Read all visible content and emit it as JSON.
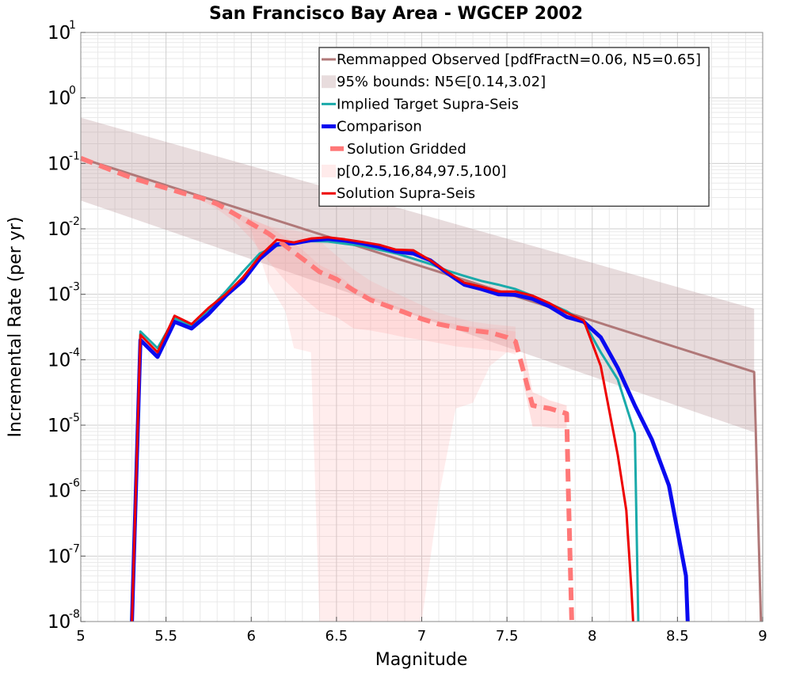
{
  "chart_data": {
    "type": "line",
    "title": "San Francisco Bay Area - WGCEP 2002",
    "xlabel": "Magnitude",
    "ylabel": "Incremental Rate (per yr)",
    "xlim": [
      5,
      9
    ],
    "ylim": [
      1e-08,
      10
    ],
    "yscale": "log",
    "grid": true,
    "legend_position": "top-right",
    "xticks": [
      "5",
      "5.5",
      "6",
      "6.5",
      "7",
      "7.5",
      "8",
      "8.5",
      "9"
    ],
    "yticks": [
      {
        "base": "10",
        "exp": "-8"
      },
      {
        "base": "10",
        "exp": "-7"
      },
      {
        "base": "10",
        "exp": "-6"
      },
      {
        "base": "10",
        "exp": "-5"
      },
      {
        "base": "10",
        "exp": "-4"
      },
      {
        "base": "10",
        "exp": "-3"
      },
      {
        "base": "10",
        "exp": "-2"
      },
      {
        "base": "10",
        "exp": "-1"
      },
      {
        "base": "10",
        "exp": "0"
      },
      {
        "base": "10",
        "exp": "1"
      }
    ],
    "bands": [
      {
        "name": "95% bounds: N5∈[0.14,3.02]",
        "color": "#b48a8e",
        "opacity": 0.3,
        "x": [
          5.0,
          8.95
        ],
        "upper": [
          0.5,
          0.0006
        ],
        "lower": [
          0.027,
          7.8e-06
        ]
      },
      {
        "name": "p[0,2.5,16,84,97.5,100]",
        "color": "#ff9a9a",
        "layers": [
          {
            "opacity": 0.18,
            "x": [
              5.0,
              5.1,
              5.2,
              5.3,
              5.4,
              5.5,
              5.6,
              5.7,
              5.8,
              5.9,
              6.0,
              6.1,
              6.2,
              6.25,
              6.35,
              6.4,
              6.5,
              6.6,
              6.7,
              6.8,
              6.9,
              7.0,
              7.1,
              7.2,
              7.3,
              7.4,
              7.5,
              7.55
            ],
            "upper": [
              0.122,
              0.095,
              0.075,
              0.06,
              0.05,
              0.042,
              0.035,
              0.03,
              0.024,
              0.018,
              0.014,
              0.011,
              0.0098,
              0.0095,
              0.0082,
              0.0065,
              0.0039,
              0.0024,
              0.0016,
              0.0012,
              0.0009,
              0.00068,
              0.00052,
              0.00044,
              0.00038,
              0.00035,
              0.00033,
              0.00032
            ],
            "lower": [
              0.122,
              0.095,
              0.075,
              0.06,
              0.05,
              0.042,
              0.035,
              0.03,
              0.022,
              0.017,
              0.0095,
              0.0015,
              0.00055,
              0.00015,
              0.00013,
              1e-08,
              1e-08,
              1e-08,
              1e-08,
              1e-08,
              1e-08,
              1e-08,
              8e-07,
              1.8e-05,
              2.2e-05,
              8e-05,
              0.00013,
              0.00013
            ]
          },
          {
            "opacity": 0.22,
            "x": [
              5.0,
              5.2,
              5.4,
              5.6,
              5.7,
              5.8,
              5.9,
              6.0,
              6.1,
              6.2,
              6.3,
              6.4,
              6.5,
              6.6,
              6.7,
              6.8,
              6.9,
              7.0,
              7.1,
              7.2,
              7.3,
              7.4,
              7.5,
              7.55
            ],
            "upper": [
              0.122,
              0.075,
              0.05,
              0.035,
              0.03,
              0.024,
              0.018,
              0.014,
              0.011,
              0.0075,
              0.0048,
              0.0028,
              0.0021,
              0.0013,
              0.00095,
              0.00075,
              0.00058,
              0.00047,
              0.0004,
              0.00035,
              0.00032,
              0.0003,
              0.00028,
              0.00027
            ],
            "lower": [
              0.122,
              0.075,
              0.05,
              0.035,
              0.028,
              0.02,
              0.013,
              0.007,
              0.0032,
              0.0016,
              0.0009,
              0.00055,
              0.00045,
              0.0003,
              0.00028,
              0.00025,
              0.00022,
              0.0002,
              0.00018,
              0.00016,
              0.00015,
              0.00014,
              0.00013,
              0.00012
            ]
          },
          {
            "opacity": 0.3,
            "x": [
              7.6,
              7.65,
              7.7,
              7.75,
              7.8,
              7.85
            ],
            "upper": [
              0.00015,
              3.2e-05,
              2.8e-05,
              2.4e-05,
              2.2e-05,
              2e-05
            ],
            "lower": [
              4e-05,
              9.5e-06,
              9.5e-06,
              9.2e-06,
              9e-06,
              9e-06
            ]
          }
        ]
      }
    ],
    "series": [
      {
        "name": "Remmapped Observed [pdfFractN=0.06, N5=0.65]",
        "color": "#b07878",
        "width": 3,
        "dash": "",
        "x": [
          5.0,
          8.95,
          8.95,
          8.99
        ],
        "values": [
          0.12,
          6.5e-05,
          6.5e-05,
          1e-08
        ]
      },
      {
        "name": "Implied Target Supra-Seis",
        "color": "#1aaaaa",
        "width": 3,
        "dash": "",
        "x": [
          5.3,
          5.35,
          5.45,
          5.55,
          5.65,
          5.75,
          5.85,
          5.95,
          6.05,
          6.15,
          6.25,
          6.35,
          6.45,
          6.55,
          6.65,
          6.75,
          6.85,
          6.95,
          7.05,
          7.15,
          7.25,
          7.35,
          7.45,
          7.55,
          7.65,
          7.75,
          7.85,
          7.95,
          8.05,
          8.15,
          8.25,
          8.27
        ],
        "values": [
          1e-08,
          0.00027,
          0.00015,
          0.00043,
          0.00033,
          0.00058,
          0.0011,
          0.0022,
          0.0042,
          0.0055,
          0.006,
          0.0065,
          0.0064,
          0.0059,
          0.0055,
          0.0048,
          0.0042,
          0.0035,
          0.0029,
          0.0023,
          0.0019,
          0.0016,
          0.0014,
          0.0012,
          0.00095,
          0.00072,
          0.00055,
          0.00038,
          0.00013,
          5e-05,
          7.5e-06,
          1e-08
        ]
      },
      {
        "name": "Comparison",
        "color": "#0a0af0",
        "width": 5,
        "dash": "",
        "x": [
          5.3,
          5.35,
          5.45,
          5.55,
          5.65,
          5.75,
          5.85,
          5.95,
          6.05,
          6.15,
          6.25,
          6.35,
          6.45,
          6.55,
          6.65,
          6.75,
          6.85,
          6.95,
          7.05,
          7.15,
          7.25,
          7.35,
          7.45,
          7.55,
          7.65,
          7.75,
          7.85,
          7.95,
          8.05,
          8.15,
          8.25,
          8.35,
          8.45,
          8.55,
          8.56
        ],
        "values": [
          1e-08,
          0.0002,
          0.00011,
          0.00038,
          0.0003,
          0.0005,
          0.00095,
          0.0016,
          0.0035,
          0.0058,
          0.006,
          0.0067,
          0.007,
          0.0066,
          0.006,
          0.0053,
          0.0045,
          0.0042,
          0.0033,
          0.0021,
          0.0014,
          0.0012,
          0.001,
          0.00098,
          0.00085,
          0.00065,
          0.00045,
          0.00038,
          0.00022,
          7.5e-05,
          2e-05,
          6e-06,
          1.2e-06,
          5e-08,
          1e-08
        ]
      },
      {
        "name": "Solution Gridded",
        "color": "#ff7878",
        "width": 6,
        "dash": "16,9",
        "x": [
          5.0,
          5.1,
          5.2,
          5.3,
          5.4,
          5.5,
          5.6,
          5.7,
          5.8,
          5.9,
          6.0,
          6.1,
          6.2,
          6.3,
          6.4,
          6.5,
          6.6,
          6.7,
          6.8,
          6.9,
          7.0,
          7.1,
          7.2,
          7.3,
          7.4,
          7.5,
          7.55,
          7.65,
          7.75,
          7.85,
          7.86,
          7.88
        ],
        "values": [
          0.12,
          0.095,
          0.075,
          0.06,
          0.05,
          0.042,
          0.035,
          0.03,
          0.024,
          0.017,
          0.012,
          0.0085,
          0.0055,
          0.0035,
          0.0022,
          0.0017,
          0.00115,
          0.00082,
          0.00066,
          0.00053,
          0.00042,
          0.00035,
          0.00031,
          0.00028,
          0.00026,
          0.00022,
          0.00019,
          2e-05,
          1.8e-05,
          1.5e-05,
          1e-06,
          1e-08
        ]
      },
      {
        "name": "Solution Supra-Seis",
        "color": "#ee0000",
        "width": 3,
        "dash": "",
        "x": [
          5.3,
          5.35,
          5.45,
          5.55,
          5.65,
          5.75,
          5.85,
          5.95,
          6.05,
          6.15,
          6.25,
          6.35,
          6.45,
          6.55,
          6.65,
          6.75,
          6.85,
          6.95,
          7.05,
          7.15,
          7.25,
          7.35,
          7.45,
          7.55,
          7.65,
          7.75,
          7.85,
          7.95,
          8.05,
          8.15,
          8.2,
          8.23,
          8.24
        ],
        "values": [
          1e-08,
          0.00024,
          0.00013,
          0.00047,
          0.00035,
          0.00062,
          0.001,
          0.0018,
          0.0038,
          0.0068,
          0.0062,
          0.0071,
          0.0074,
          0.0069,
          0.0063,
          0.0057,
          0.0048,
          0.0047,
          0.0033,
          0.0022,
          0.0015,
          0.0013,
          0.0011,
          0.0011,
          0.00095,
          0.00073,
          0.00052,
          0.0004,
          8e-05,
          3.5e-06,
          5e-07,
          3e-08,
          1e-08
        ]
      }
    ],
    "legend": [
      {
        "label": "Remmapped Observed [pdfFractN=0.06, N5=0.65]",
        "kind": "line",
        "color": "#b07878",
        "width": 3,
        "dash": ""
      },
      {
        "label": "95% bounds: N5∈[0.14,3.02]",
        "kind": "band",
        "color": "#b48a8e",
        "opacity": 0.3
      },
      {
        "label": "Implied Target Supra-Seis",
        "kind": "line",
        "color": "#1aaaaa",
        "width": 3,
        "dash": ""
      },
      {
        "label": "Comparison",
        "kind": "line",
        "color": "#0a0af0",
        "width": 5,
        "dash": ""
      },
      {
        "label": "Solution Gridded",
        "kind": "line",
        "color": "#ff7878",
        "width": 6,
        "dash": "16,9"
      },
      {
        "label": "p[0,2.5,16,84,97.5,100]",
        "kind": "band",
        "color": "#ff9a9a",
        "opacity": 0.2
      },
      {
        "label": "Solution Supra-Seis",
        "kind": "line",
        "color": "#ee0000",
        "width": 3,
        "dash": ""
      }
    ]
  }
}
